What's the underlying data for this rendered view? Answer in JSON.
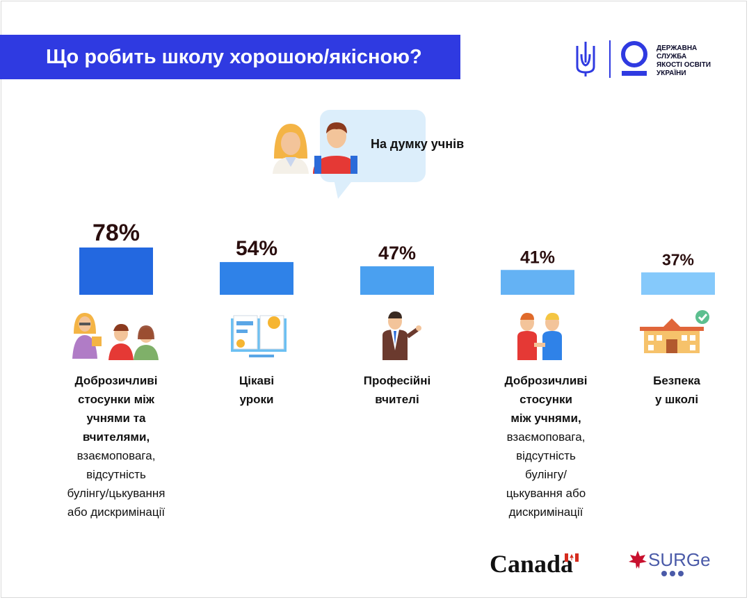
{
  "header": {
    "title": "Що робить школу хорошою/якісною?",
    "org_name_lines": [
      "ДЕРЖАВНА",
      "СЛУЖБА",
      "ЯКОСТІ ОСВІТИ",
      "УКРАЇНИ"
    ]
  },
  "bubble": {
    "label": "На думку учнів"
  },
  "chart_data": {
    "type": "bar",
    "categories": [
      "Доброзичливі стосунки між учнями та вчителями",
      "Цікаві уроки",
      "Професійні вчителі",
      "Доброзичливі стосунки між учнями",
      "Безпека у школі"
    ],
    "values": [
      78,
      54,
      47,
      41,
      37
    ],
    "value_labels": [
      "78%",
      "54%",
      "47%",
      "41%",
      "37%"
    ],
    "colors": [
      "#2368e0",
      "#2f82e8",
      "#4aa0f0",
      "#64b2f4",
      "#85c9fb"
    ],
    "ylim": [
      0,
      100
    ],
    "grid": false,
    "legend": "none"
  },
  "items": [
    {
      "title": [
        "Доброзичливі",
        "стосунки між",
        "учнями та",
        "вчителями,"
      ],
      "detail": [
        "взаємоповага,",
        "відсутність",
        "булінгу/цькування",
        "або дискримінації"
      ],
      "icon": "teacher-students-icon"
    },
    {
      "title": [
        "Цікаві",
        "уроки"
      ],
      "detail": [],
      "icon": "book-icon"
    },
    {
      "title": [
        "Професійні",
        "вчителі"
      ],
      "detail": [],
      "icon": "teacher-icon"
    },
    {
      "title": [
        "Доброзичливі",
        "стосунки",
        "між учнями,"
      ],
      "detail": [
        "взаємоповага,",
        "відсутність",
        "булінгу/",
        "цькування або",
        "дискримінації"
      ],
      "icon": "handshake-students-icon"
    },
    {
      "title": [
        "Безпека",
        "у школі"
      ],
      "detail": [],
      "icon": "school-building-icon"
    }
  ],
  "footer": {
    "canada": "Canada",
    "surge": "SURGe"
  }
}
